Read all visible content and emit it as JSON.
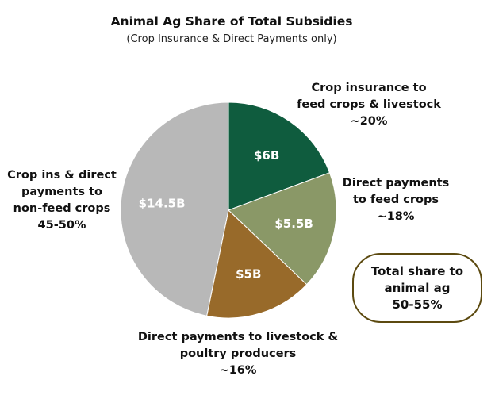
{
  "chart_data": {
    "type": "pie",
    "title": "Animal Ag Share of Total Subsidies",
    "subtitle": "(Crop Insurance & Direct Payments only)",
    "slices": [
      {
        "label": "$6B",
        "value": 6,
        "color": "#0f5c3e",
        "annotation": [
          "Crop insurance to",
          "feed crops & livestock",
          "~20%"
        ]
      },
      {
        "label": "$5.5B",
        "value": 5.5,
        "color": "#8a9867",
        "annotation": [
          "Direct payments",
          "to feed crops",
          "~18%"
        ]
      },
      {
        "label": "$5B",
        "value": 5,
        "color": "#986a2a",
        "annotation": [
          "Direct payments to livestock &",
          "poultry producers",
          "~16%"
        ]
      },
      {
        "label": "$14.5B",
        "value": 14.5,
        "color": "#b8b8b8",
        "annotation": [
          "Crop ins & direct",
          "payments to",
          "non-feed crops",
          "45-50%"
        ]
      }
    ],
    "total_box": [
      "Total share to",
      "animal ag",
      "50-55%"
    ]
  }
}
